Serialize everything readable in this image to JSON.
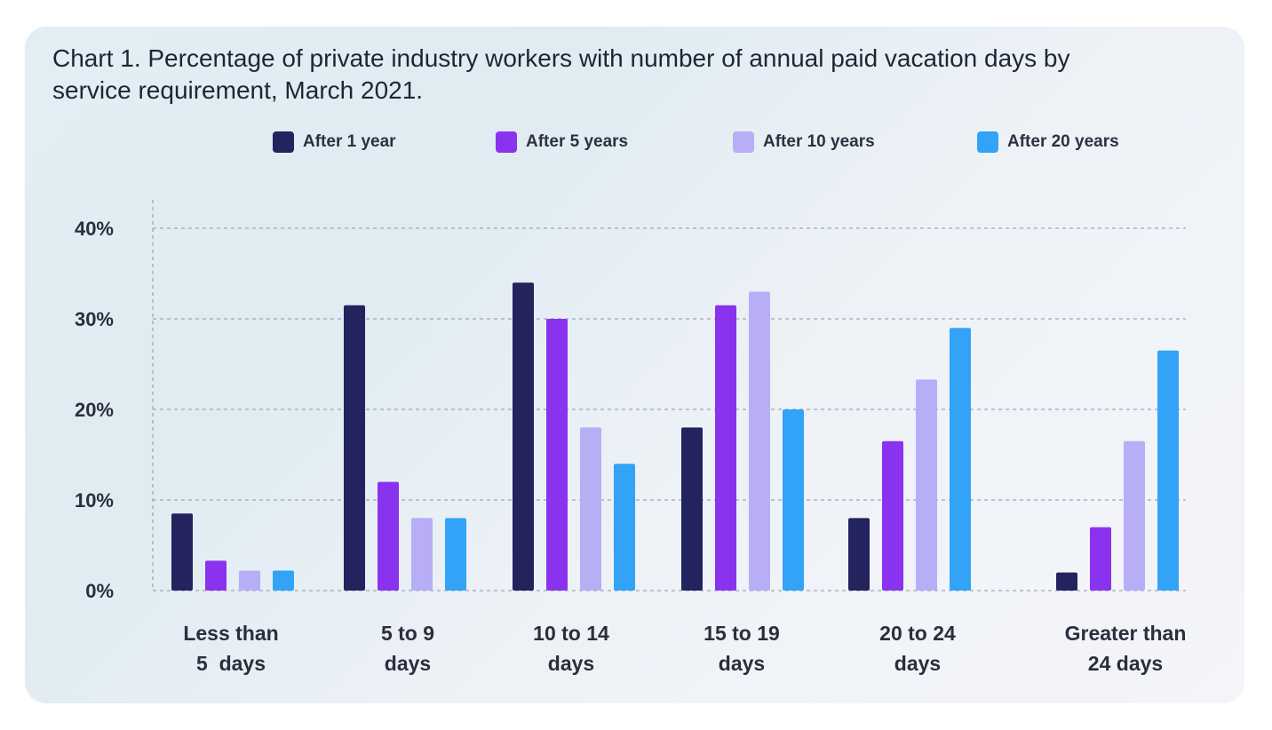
{
  "chart_data": {
    "type": "bar",
    "title": "Chart 1. Percentage of private industry workers with number of annual paid vacation days by service requirement, March 2021.",
    "categories": [
      [
        "Less than",
        "5  days"
      ],
      [
        "5 to 9",
        "days"
      ],
      [
        "10 to 14",
        "days"
      ],
      [
        "15 to 19",
        "days"
      ],
      [
        "20 to 24",
        "days"
      ],
      [
        "Greater than",
        "24 days"
      ]
    ],
    "series": [
      {
        "name": "After 1 year",
        "color": "#23235e",
        "values": [
          8.5,
          31.5,
          34,
          18,
          8,
          2
        ]
      },
      {
        "name": "After 5 years",
        "color": "#8a33ee",
        "values": [
          3.3,
          12,
          30,
          31.5,
          16.5,
          7
        ]
      },
      {
        "name": "After 10 years",
        "color": "#b7aef5",
        "values": [
          2.2,
          8,
          18,
          33,
          23.3,
          16.5
        ]
      },
      {
        "name": "After 20 years",
        "color": "#32a3f6",
        "values": [
          2.2,
          8,
          14,
          20,
          29,
          26.5
        ]
      }
    ],
    "ylim": [
      0,
      40
    ],
    "yticks": [
      0,
      10,
      20,
      30,
      40
    ],
    "ytick_labels": [
      "0%",
      "10%",
      "20%",
      "30%",
      "40%"
    ],
    "grid": true,
    "legend_position": "top"
  }
}
